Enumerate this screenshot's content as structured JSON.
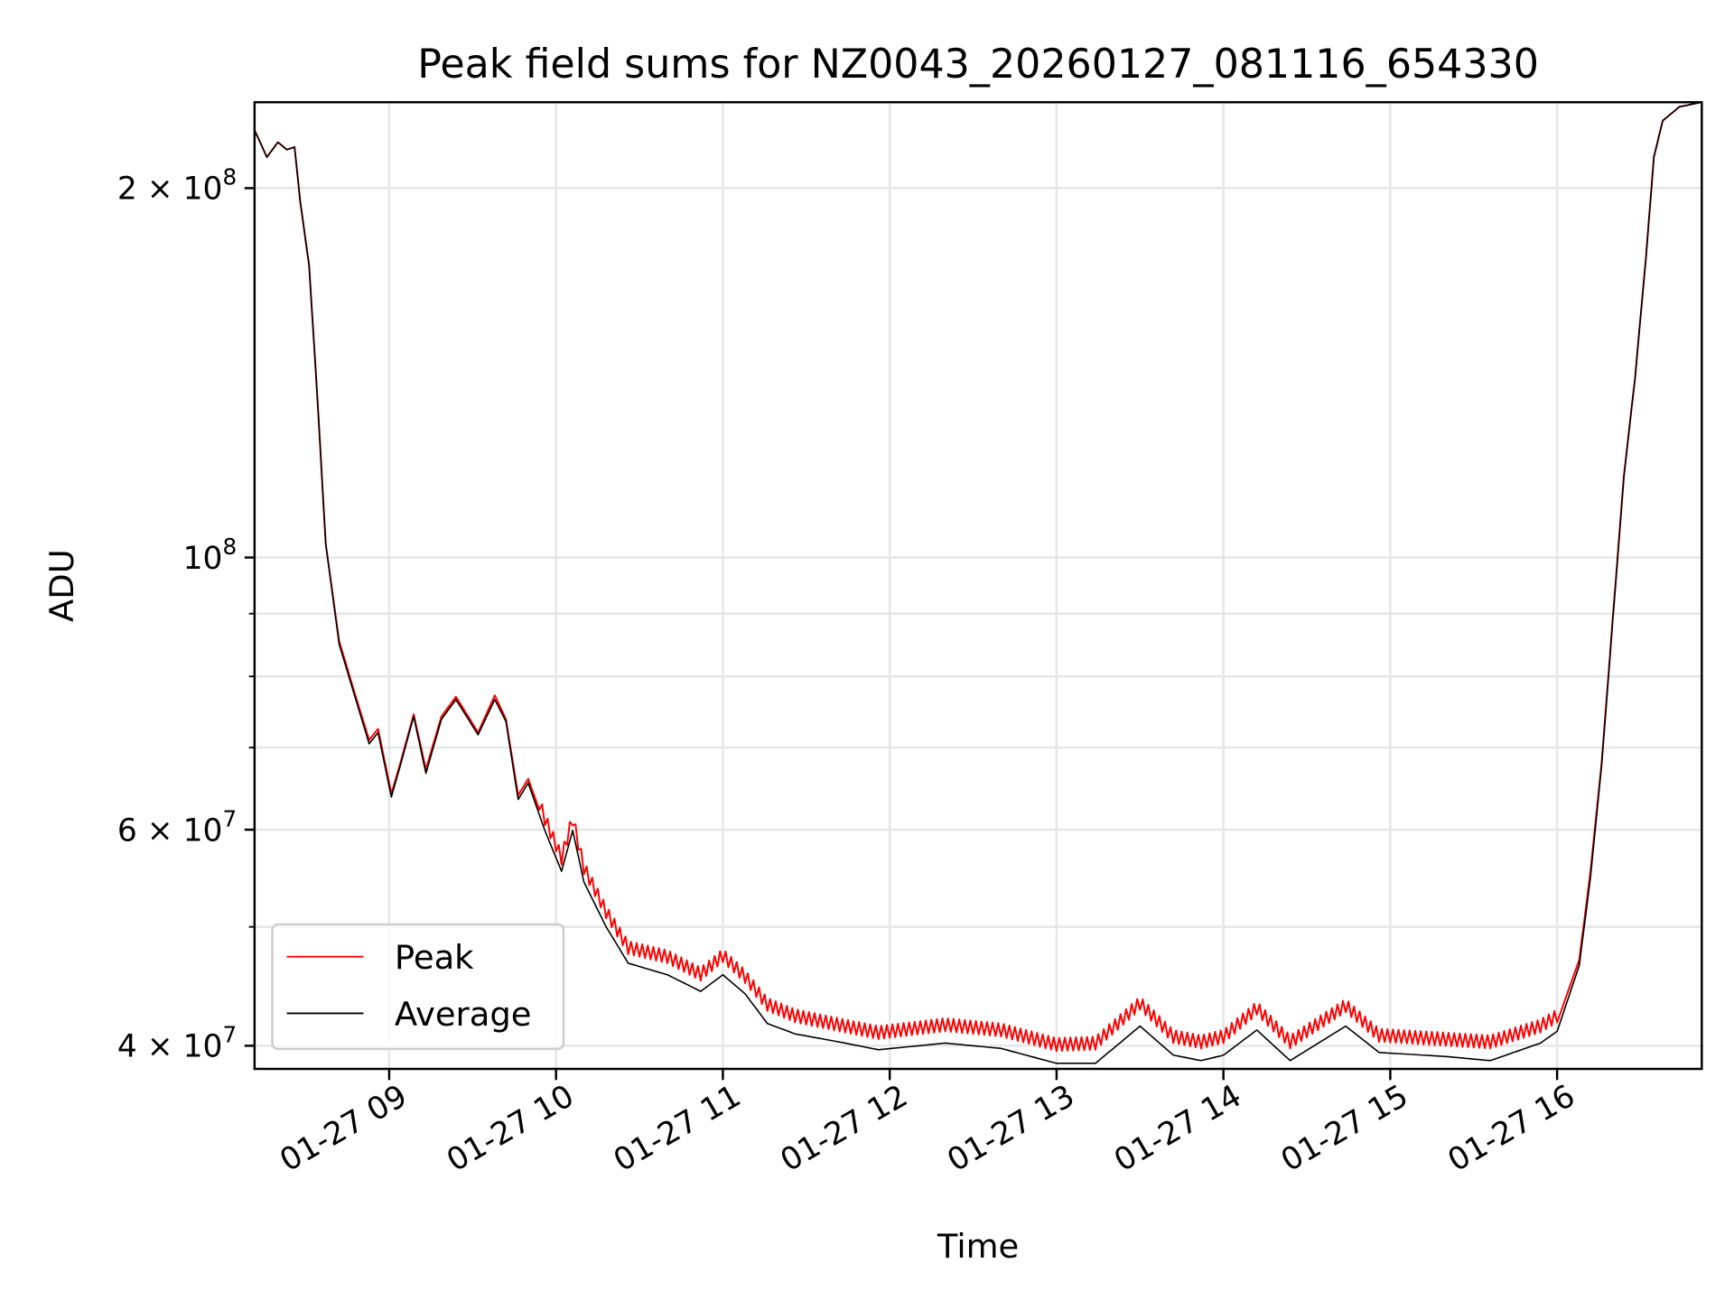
{
  "chart_data": {
    "type": "line",
    "title": "Peak field sums for NZ0043_20260127_081116_654330",
    "xlabel": "Time",
    "ylabel": "ADU",
    "x_unit": "hours (2026-01-27)",
    "xlim": [
      8.193,
      16.867
    ],
    "ylim": [
      38300000,
      235000000
    ],
    "yscale": "log",
    "grid": true,
    "legend_placement": "lower-left",
    "xticks": [
      {
        "value": 9,
        "label": "01-27 09"
      },
      {
        "value": 10,
        "label": "01-27 10"
      },
      {
        "value": 11,
        "label": "01-27 11"
      },
      {
        "value": 12,
        "label": "01-27 12"
      },
      {
        "value": 13,
        "label": "01-27 13"
      },
      {
        "value": 14,
        "label": "01-27 14"
      },
      {
        "value": 15,
        "label": "01-27 15"
      },
      {
        "value": 16,
        "label": "01-27 16"
      }
    ],
    "yticks": [
      {
        "value": 200000000,
        "mant": "2",
        "exp": "8"
      },
      {
        "value": 100000000,
        "mant": "",
        "exp": "8"
      },
      {
        "value": 60000000,
        "mant": "6",
        "exp": "7"
      },
      {
        "value": 40000000,
        "mant": "4",
        "exp": "7"
      }
    ],
    "yminor_ticks": [
      50000000,
      70000000,
      80000000,
      90000000
    ],
    "x": [
      8.193,
      8.267,
      8.333,
      8.387,
      8.433,
      8.467,
      8.52,
      8.567,
      8.62,
      8.7,
      8.8,
      8.88,
      8.933,
      9.013,
      9.067,
      9.147,
      9.22,
      9.313,
      9.4,
      9.533,
      9.633,
      9.7,
      9.773,
      9.833,
      9.933,
      10.033,
      10.1,
      10.167,
      10.3,
      10.433,
      10.667,
      10.867,
      11.0,
      11.133,
      11.267,
      11.433,
      11.733,
      11.933,
      12.333,
      12.667,
      13.0,
      13.233,
      13.5,
      13.7,
      13.867,
      14.0,
      14.2,
      14.4,
      14.733,
      14.933,
      15.333,
      15.6,
      15.9,
      16.0,
      16.133,
      16.2,
      16.267,
      16.333,
      16.4,
      16.467,
      16.533,
      16.58,
      16.633,
      16.733,
      16.867
    ],
    "series": [
      {
        "name": "Peak",
        "color": "#ff0000",
        "values": [
          223000000,
          212000000,
          218000000,
          215000000,
          216000000,
          195000000,
          173000000,
          137000000,
          102500000,
          85500000,
          77000000,
          71000000,
          72500000,
          64200000,
          68000000,
          74500000,
          67200000,
          74200000,
          77000000,
          72000000,
          77200000,
          73800000,
          64000000,
          66000000,
          60500000,
          56200000,
          60500000,
          55200000,
          50800000,
          47500000,
          46700000,
          45200000,
          46800000,
          45000000,
          42700000,
          41800000,
          41000000,
          40500000,
          41100000,
          40700000,
          39600000,
          39700000,
          42800000,
          40200000,
          39800000,
          40200000,
          42400000,
          39800000,
          42600000,
          40300000,
          40000000,
          39800000,
          41000000,
          41800000,
          47000000,
          55500000,
          68000000,
          89000000,
          116500000,
          140000000,
          176000000,
          212000000,
          227000000,
          233000000,
          235000000
        ]
      },
      {
        "name": "Average",
        "color": "#000000",
        "values": [
          223000000,
          212000000,
          218000000,
          215000000,
          216000000,
          195000000,
          173000000,
          137000000,
          102500000,
          85000000,
          76600000,
          70500000,
          72000000,
          63800000,
          67700000,
          74200000,
          66700000,
          73800000,
          76600000,
          71700000,
          76600000,
          73500000,
          63500000,
          65500000,
          59900000,
          55500000,
          59900000,
          54400000,
          50000000,
          46700000,
          45700000,
          44300000,
          45700000,
          44100000,
          41700000,
          40900000,
          40200000,
          39700000,
          40200000,
          39800000,
          38700000,
          38700000,
          41500000,
          39300000,
          38900000,
          39300000,
          41200000,
          38900000,
          41500000,
          39500000,
          39200000,
          38900000,
          40200000,
          41100000,
          46500000,
          54900000,
          67700000,
          88600000,
          116200000,
          140000000,
          176000000,
          212000000,
          227000000,
          233000000,
          235000000
        ]
      }
    ]
  }
}
